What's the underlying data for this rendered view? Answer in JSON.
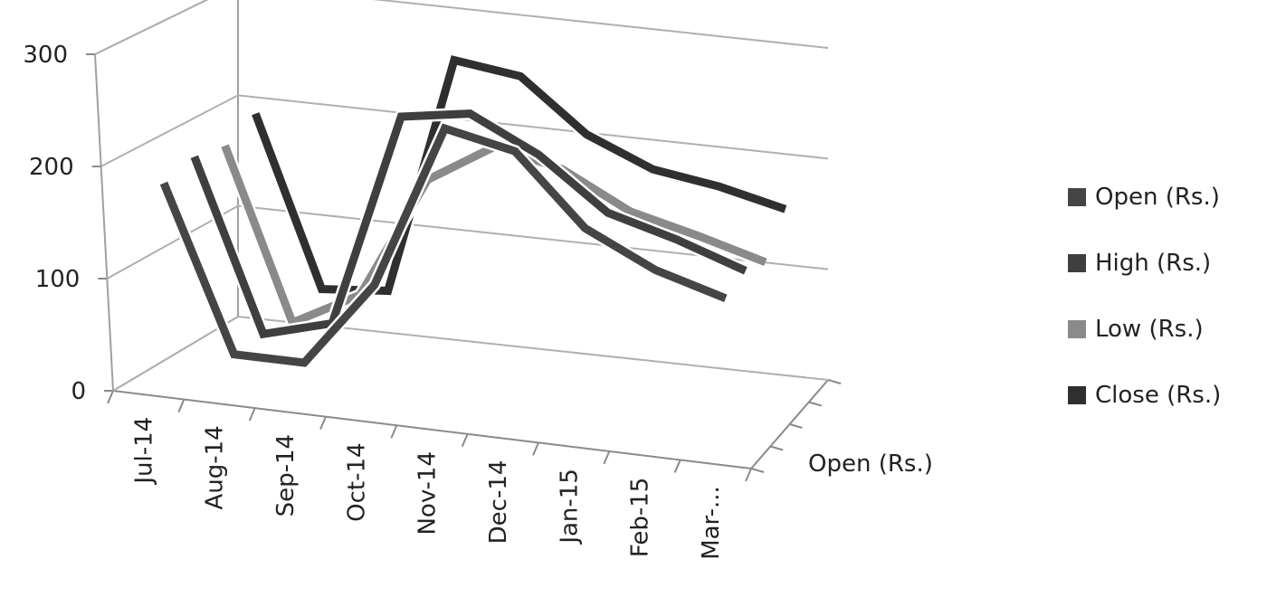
{
  "chart_data": {
    "type": "line",
    "style": "3d",
    "categories": [
      "Jul-14",
      "Aug-14",
      "Sep-14",
      "Oct-14",
      "Nov-14",
      "Dec-14",
      "Jan-15",
      "Feb-15",
      "Mar-..."
    ],
    "series": [
      {
        "name": "Open (Rs.)",
        "values": [
          183,
          36,
          36,
          114,
          263,
          250,
          188,
          158,
          140
        ],
        "color": "#454545"
      },
      {
        "name": "High (Rs.)",
        "values": [
          190,
          37,
          54,
          248,
          258,
          228,
          183,
          166,
          145
        ],
        "color": "#3f3f3f"
      },
      {
        "name": "Low (Rs.)",
        "values": [
          183,
          30,
          62,
          173,
          210,
          196,
          165,
          150,
          133
        ],
        "color": "#8a8a8a"
      },
      {
        "name": "Close (Rs.)",
        "values": [
          195,
          43,
          48,
          263,
          255,
          209,
          184,
          175,
          161
        ],
        "color": "#2f2f2f"
      }
    ],
    "yticks": [
      0,
      100,
      200,
      300
    ],
    "ylim": [
      0,
      300
    ],
    "depth_axis_label": "Open (Rs.)",
    "legend": "right",
    "grid": true
  }
}
